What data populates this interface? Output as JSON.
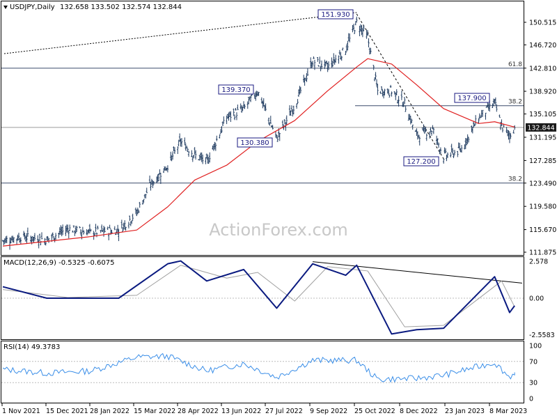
{
  "symbol_header": "USDJPY,Daily",
  "ohlc_header": "132.658 133.502 132.574 132.844",
  "watermark": "ActionForex.com",
  "colors": {
    "background": "#ffffff",
    "bars": "#1e3a5f",
    "ma": "#e02020",
    "macd": "#0a1a80",
    "signal": "#a0a0a0",
    "rsi": "#3a8ee8",
    "price_tag_bg": "#1a1a1a",
    "label_border": "#1a1a80",
    "label_text": "#1a1a80",
    "grid_text": "#000000",
    "watermark": "#c8c8c8"
  },
  "chart_data": [
    {
      "type": "line",
      "panel": "price",
      "title": "USDJPY,Daily",
      "y_ticks": [
        "150.515",
        "146.720",
        "142.810",
        "138.920",
        "135.105",
        "131.195",
        "127.285",
        "123.490",
        "119.580",
        "115.670",
        "111.875"
      ],
      "ylim": [
        111.875,
        150.515
      ],
      "current_price": "132.844",
      "series": [
        {
          "name": "price",
          "values": [
            {
              "date": "2021-11-01",
              "v": 113.8
            },
            {
              "date": "2021-11-20",
              "v": 114.5
            },
            {
              "date": "2021-12-15",
              "v": 114.0
            },
            {
              "date": "2022-01-05",
              "v": 115.8
            },
            {
              "date": "2022-01-28",
              "v": 115.2
            },
            {
              "date": "2022-02-25",
              "v": 115.6
            },
            {
              "date": "2022-03-15",
              "v": 118.5
            },
            {
              "date": "2022-03-28",
              "v": 123.0
            },
            {
              "date": "2022-04-15",
              "v": 126.5
            },
            {
              "date": "2022-04-28",
              "v": 130.5
            },
            {
              "date": "2022-05-12",
              "v": 128.2
            },
            {
              "date": "2022-05-24",
              "v": 127.0
            },
            {
              "date": "2022-06-13",
              "v": 134.5
            },
            {
              "date": "2022-06-30",
              "v": 136.0
            },
            {
              "date": "2022-07-14",
              "v": 139.0
            },
            {
              "date": "2022-08-02",
              "v": 131.0
            },
            {
              "date": "2022-08-20",
              "v": 136.5
            },
            {
              "date": "2022-09-07",
              "v": 144.0
            },
            {
              "date": "2022-09-22",
              "v": 143.0
            },
            {
              "date": "2022-10-10",
              "v": 146.0
            },
            {
              "date": "2022-10-21",
              "v": 150.5
            },
            {
              "date": "2022-11-01",
              "v": 148.0
            },
            {
              "date": "2022-11-11",
              "v": 139.0
            },
            {
              "date": "2022-11-25",
              "v": 139.0
            },
            {
              "date": "2022-12-08",
              "v": 136.8
            },
            {
              "date": "2022-12-20",
              "v": 131.5
            },
            {
              "date": "2023-01-05",
              "v": 132.5
            },
            {
              "date": "2023-01-16",
              "v": 128.0
            },
            {
              "date": "2023-02-02",
              "v": 129.0
            },
            {
              "date": "2023-02-20",
              "v": 134.5
            },
            {
              "date": "2023-03-08",
              "v": 137.0
            },
            {
              "date": "2023-03-15",
              "v": 133.0
            },
            {
              "date": "2023-03-23",
              "v": 131.5
            },
            {
              "date": "2023-03-28",
              "v": 132.8
            }
          ]
        },
        {
          "name": "moving average",
          "values": [
            {
              "date": "2021-11-01",
              "v": 112.9
            },
            {
              "date": "2022-01-28",
              "v": 114.5
            },
            {
              "date": "2022-03-15",
              "v": 115.6
            },
            {
              "date": "2022-04-15",
              "v": 119.5
            },
            {
              "date": "2022-05-12",
              "v": 124.0
            },
            {
              "date": "2022-06-13",
              "v": 126.5
            },
            {
              "date": "2022-07-14",
              "v": 130.5
            },
            {
              "date": "2022-08-20",
              "v": 134.0
            },
            {
              "date": "2022-09-22",
              "v": 139.0
            },
            {
              "date": "2022-10-21",
              "v": 143.0
            },
            {
              "date": "2022-11-01",
              "v": 144.4
            },
            {
              "date": "2022-11-25",
              "v": 143.5
            },
            {
              "date": "2022-12-20",
              "v": 140.0
            },
            {
              "date": "2023-01-16",
              "v": 136.0
            },
            {
              "date": "2023-02-20",
              "v": 133.5
            },
            {
              "date": "2023-03-08",
              "v": 133.8
            },
            {
              "date": "2023-03-28",
              "v": 132.9
            }
          ]
        }
      ],
      "horizontal_levels": [
        {
          "price": 142.8,
          "label": "61.8"
        },
        {
          "price": 136.5,
          "label": "38.2"
        },
        {
          "price": 123.5,
          "label": "38.2"
        },
        {
          "price": 132.844,
          "label": ""
        }
      ],
      "annotations": [
        {
          "label": "151.930",
          "date": "2022-10-21",
          "price": 151.93
        },
        {
          "label": "139.370",
          "date": "2022-07-14",
          "price": 139.37
        },
        {
          "label": "130.380",
          "date": "2022-08-02",
          "price": 130.38
        },
        {
          "label": "137.900",
          "date": "2023-03-08",
          "price": 137.9
        },
        {
          "label": "127.200",
          "date": "2023-01-16",
          "price": 127.2
        }
      ]
    },
    {
      "type": "line",
      "panel": "macd",
      "title": "MACD(12,26,9) -0.5325 -0.6075",
      "y_ticks": [
        "2.578",
        "0.00",
        "-2.5583"
      ],
      "ylim": [
        -2.9,
        2.9
      ],
      "series": [
        {
          "name": "macd",
          "values": [
            {
              "date": "2021-11-01",
              "v": 0.8
            },
            {
              "date": "2021-12-15",
              "v": 0.0
            },
            {
              "date": "2022-02-25",
              "v": 0.0
            },
            {
              "date": "2022-04-15",
              "v": 2.4
            },
            {
              "date": "2022-04-28",
              "v": 2.6
            },
            {
              "date": "2022-05-24",
              "v": 1.2
            },
            {
              "date": "2022-06-30",
              "v": 2.0
            },
            {
              "date": "2022-08-02",
              "v": -0.7
            },
            {
              "date": "2022-09-07",
              "v": 2.4
            },
            {
              "date": "2022-10-10",
              "v": 1.6
            },
            {
              "date": "2022-10-21",
              "v": 2.3
            },
            {
              "date": "2022-11-25",
              "v": -2.5
            },
            {
              "date": "2022-12-20",
              "v": -2.2
            },
            {
              "date": "2023-01-16",
              "v": -2.1
            },
            {
              "date": "2023-03-08",
              "v": 1.5
            },
            {
              "date": "2023-03-23",
              "v": -1.0
            },
            {
              "date": "2023-03-28",
              "v": -0.53
            }
          ]
        },
        {
          "name": "signal",
          "values": [
            {
              "date": "2021-11-01",
              "v": 0.6
            },
            {
              "date": "2022-01-05",
              "v": 0.05
            },
            {
              "date": "2022-03-15",
              "v": 0.2
            },
            {
              "date": "2022-04-28",
              "v": 2.3
            },
            {
              "date": "2022-06-13",
              "v": 1.4
            },
            {
              "date": "2022-07-14",
              "v": 1.8
            },
            {
              "date": "2022-08-20",
              "v": -0.2
            },
            {
              "date": "2022-09-22",
              "v": 2.2
            },
            {
              "date": "2022-11-01",
              "v": 1.9
            },
            {
              "date": "2022-12-08",
              "v": -2.0
            },
            {
              "date": "2023-01-16",
              "v": -1.9
            },
            {
              "date": "2023-03-15",
              "v": 1.2
            },
            {
              "date": "2023-03-28",
              "v": -0.61
            }
          ]
        }
      ]
    },
    {
      "type": "line",
      "panel": "rsi",
      "title": "RSI(14) 49.3783",
      "y_ticks": [
        "100",
        "70",
        "30",
        "0"
      ],
      "ylim": [
        0,
        100
      ],
      "series": [
        {
          "name": "rsi",
          "values": [
            {
              "date": "2021-11-01",
              "v": 55
            },
            {
              "date": "2021-12-15",
              "v": 48
            },
            {
              "date": "2022-01-28",
              "v": 52
            },
            {
              "date": "2022-03-15",
              "v": 78
            },
            {
              "date": "2022-04-15",
              "v": 80
            },
            {
              "date": "2022-05-24",
              "v": 52
            },
            {
              "date": "2022-06-30",
              "v": 66
            },
            {
              "date": "2022-08-02",
              "v": 40
            },
            {
              "date": "2022-09-07",
              "v": 72
            },
            {
              "date": "2022-10-21",
              "v": 72
            },
            {
              "date": "2022-11-11",
              "v": 36
            },
            {
              "date": "2022-12-20",
              "v": 38
            },
            {
              "date": "2023-01-16",
              "v": 44
            },
            {
              "date": "2023-03-08",
              "v": 68
            },
            {
              "date": "2023-03-23",
              "v": 40
            },
            {
              "date": "2023-03-28",
              "v": 49.4
            }
          ]
        }
      ]
    }
  ],
  "x_axis_labels": [
    "1 Nov 2021",
    "15 Dec 2021",
    "28 Jan 2022",
    "15 Mar 2022",
    "28 Apr 2022",
    "13 Jun 2022",
    "27 Jul 2022",
    "9 Sep 2022",
    "25 Oct 2022",
    "8 Dec 2022",
    "23 Jan 2023",
    "8 Mar 2023"
  ]
}
